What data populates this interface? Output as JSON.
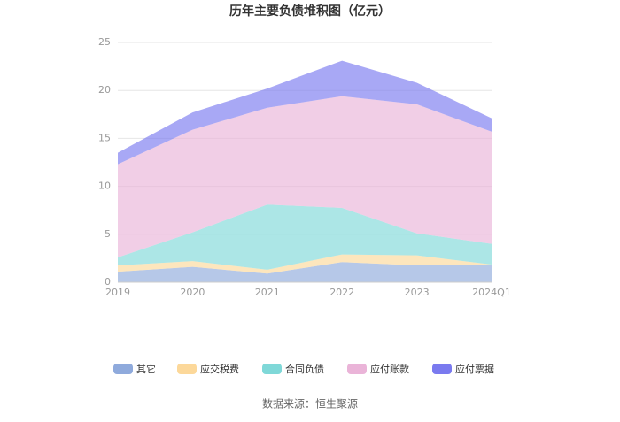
{
  "chart_data": {
    "type": "stacked-area",
    "title": "历年主要负债堆积图（亿元）",
    "categories": [
      "2019",
      "2020",
      "2021",
      "2022",
      "2023",
      "2024Q1"
    ],
    "series": [
      {
        "name": "其它",
        "color": "#8faadc",
        "values": [
          1.1,
          1.6,
          0.9,
          2.1,
          1.75,
          1.75
        ]
      },
      {
        "name": "应交税费",
        "color": "#fcd89a",
        "values": [
          0.65,
          0.6,
          0.4,
          0.8,
          1.05,
          0.1
        ]
      },
      {
        "name": "合同负债",
        "color": "#7fd8d8",
        "values": [
          0.85,
          3.0,
          6.8,
          4.85,
          2.3,
          2.15
        ]
      },
      {
        "name": "应付账款",
        "color": "#eab4d8",
        "values": [
          9.7,
          10.7,
          10.1,
          11.65,
          13.45,
          11.7
        ]
      },
      {
        "name": "应付票据",
        "color": "#7a7aef",
        "values": [
          1.2,
          1.8,
          2.0,
          3.7,
          2.25,
          1.4
        ]
      }
    ],
    "ylim": [
      0,
      25
    ],
    "yticks": [
      0,
      5,
      10,
      15,
      20,
      25
    ],
    "grid": true,
    "source": "数据来源：恒生聚源"
  }
}
